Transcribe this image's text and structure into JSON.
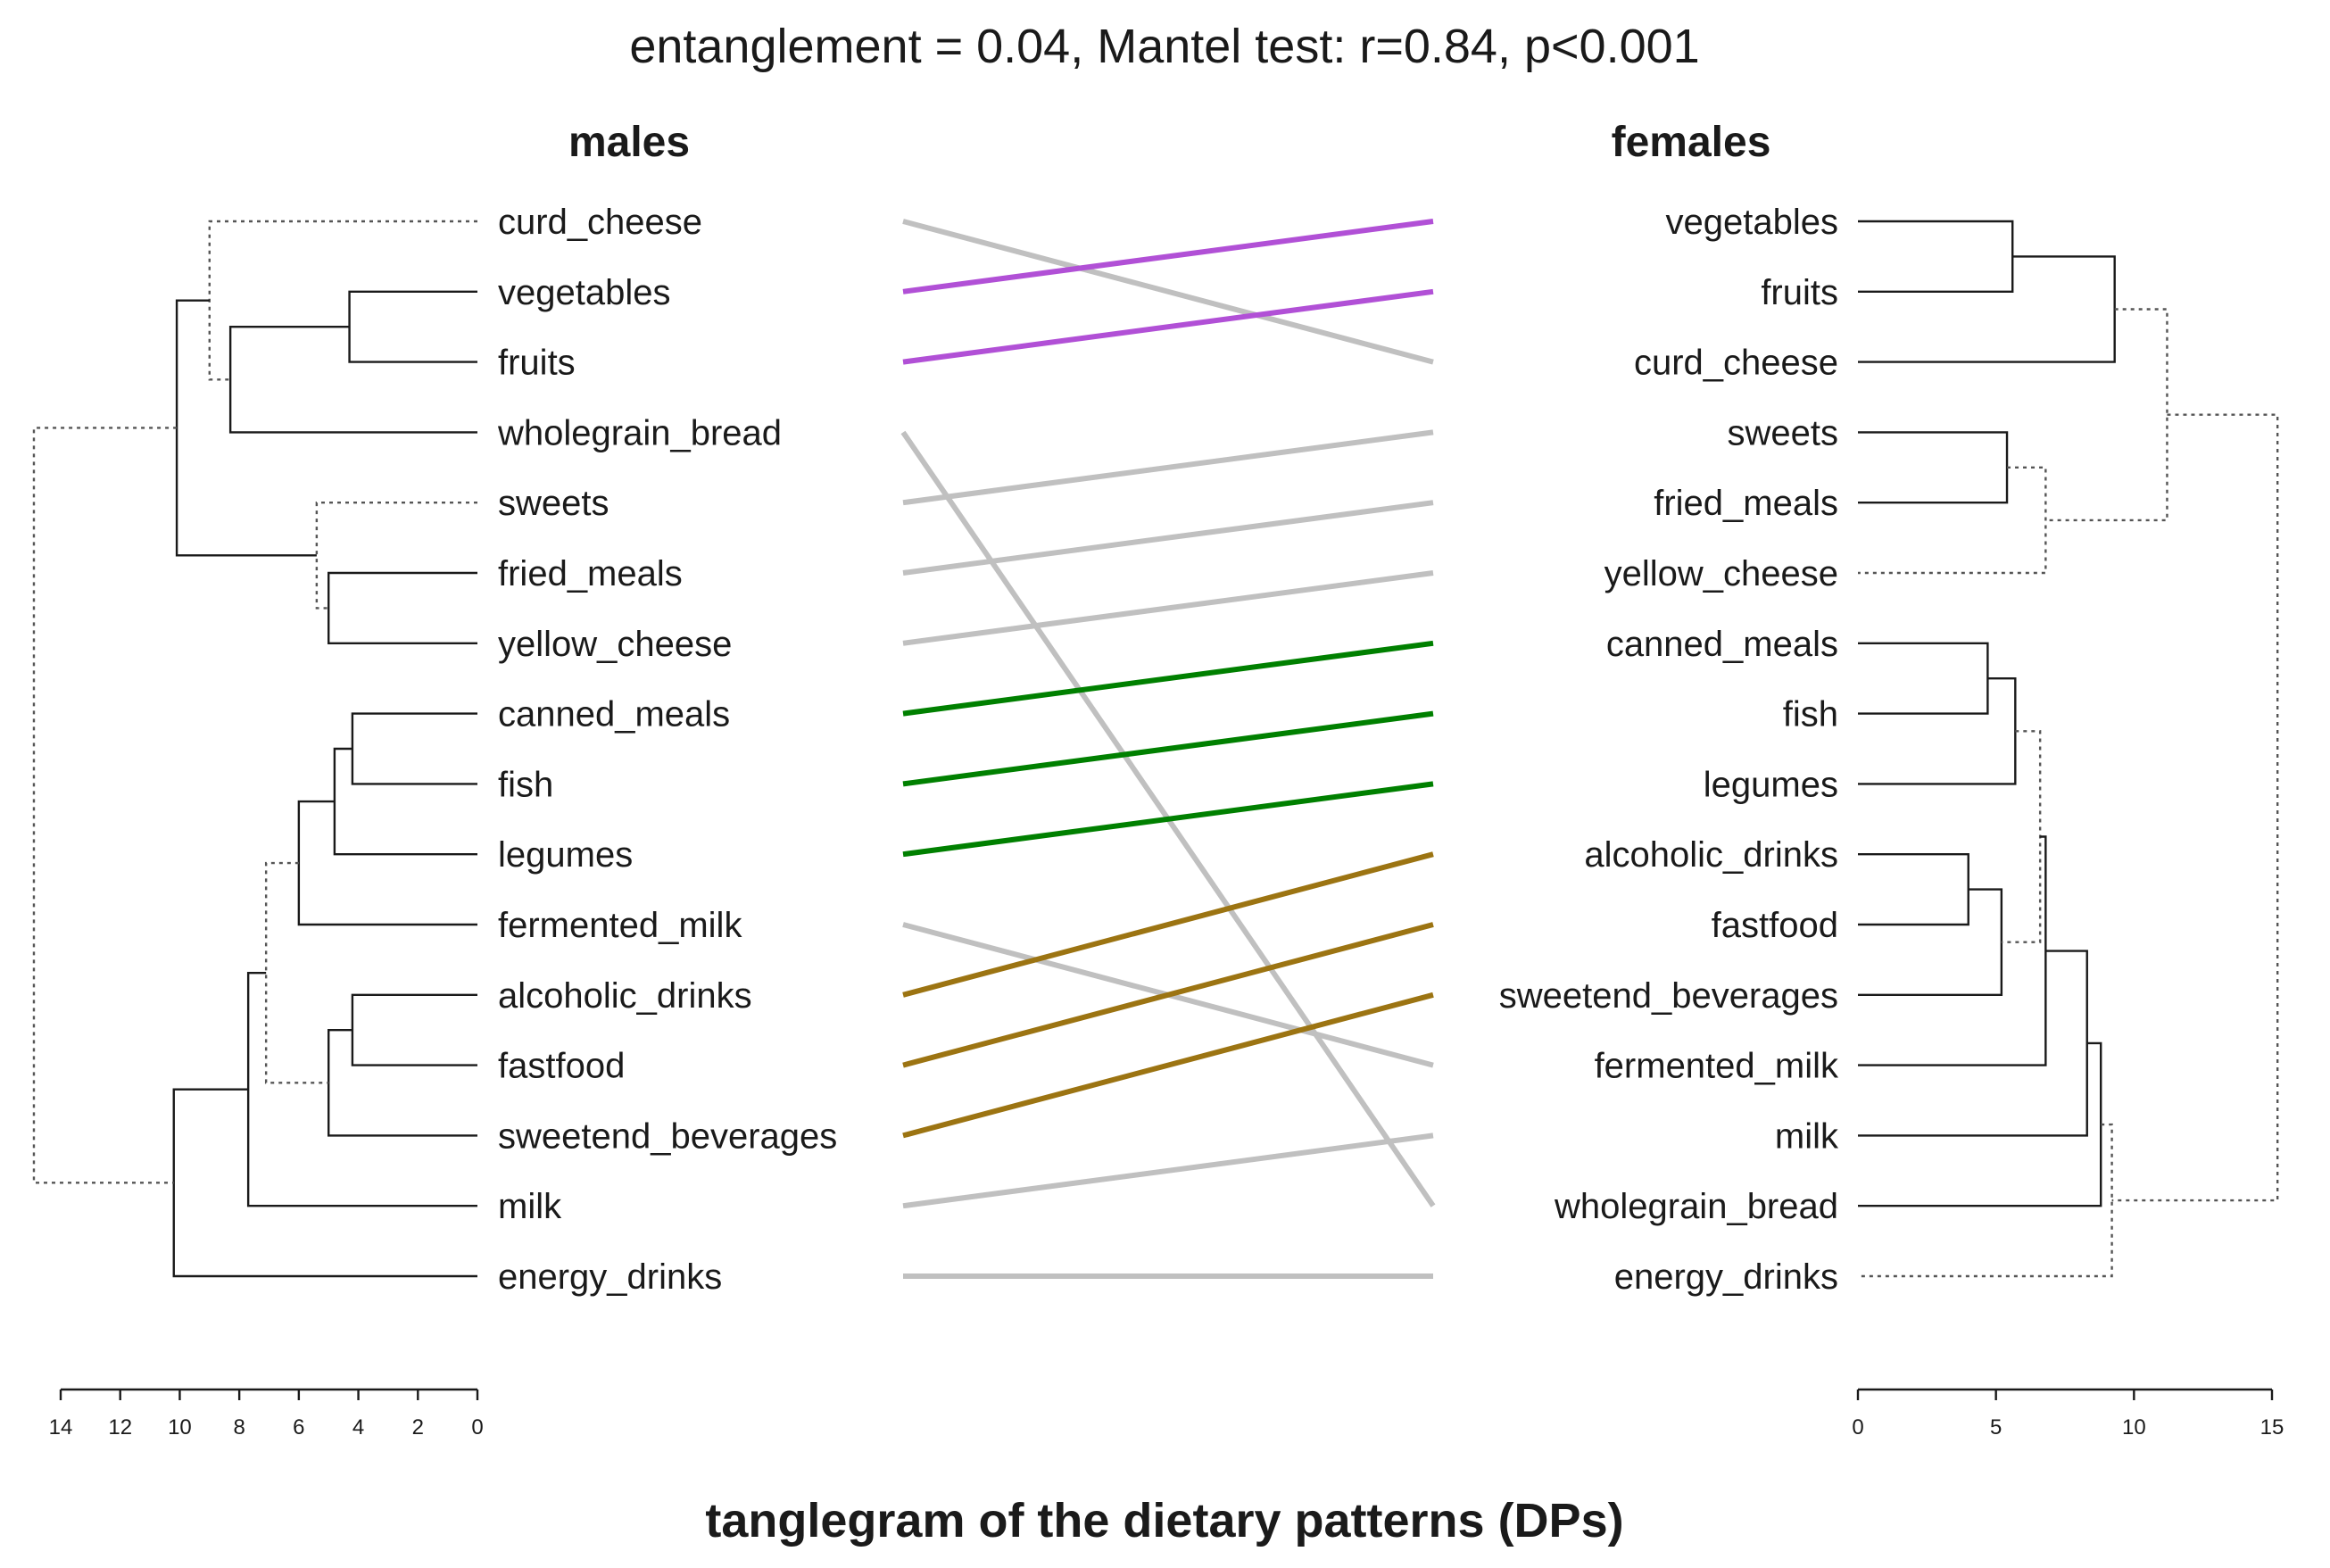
{
  "chart_data": {
    "type": "tanglegram",
    "title": "entanglement = 0.04, Mantel test: r=0.84, p<0.001",
    "xlabel": "tanglegram of the dietary patterns (DPs)",
    "colors": {
      "text": "#1a1a1a",
      "purple": "#b150d6",
      "green": "#008000",
      "gold": "#9c7412",
      "gray": "#c0c0c0",
      "dotted": "#555555"
    },
    "left": {
      "name": "males",
      "axis": {
        "min": 0,
        "max": 14,
        "ticks": [
          14,
          12,
          10,
          8,
          6,
          4,
          2,
          0
        ]
      },
      "leaves": [
        "curd_cheese",
        "vegetables",
        "fruits",
        "wholegrain_bread",
        "sweets",
        "fried_meals",
        "yellow_cheese",
        "canned_meals",
        "fish",
        "legumes",
        "fermented_milk",
        "alcoholic_drinks",
        "fastfood",
        "sweetend_beverages",
        "milk",
        "energy_drinks"
      ],
      "merges": [
        {
          "id": "m1",
          "children": [
            "L1",
            "L2"
          ],
          "height": 4.3
        },
        {
          "id": "m2",
          "children": [
            "m1",
            "L3"
          ],
          "height": 8.3
        },
        {
          "id": "m3",
          "children": [
            "L0",
            "m2"
          ],
          "height": 9.0,
          "dotted": true
        },
        {
          "id": "m4",
          "children": [
            "L5",
            "L6"
          ],
          "height": 5.0
        },
        {
          "id": "m5",
          "children": [
            "L4",
            "m4"
          ],
          "height": 5.4,
          "dotted": true
        },
        {
          "id": "m6",
          "children": [
            "m3",
            "m5"
          ],
          "height": 10.1
        },
        {
          "id": "m7",
          "children": [
            "L7",
            "L8"
          ],
          "height": 4.2
        },
        {
          "id": "m8",
          "children": [
            "m7",
            "L9"
          ],
          "height": 4.8
        },
        {
          "id": "m9",
          "children": [
            "m8",
            "L10"
          ],
          "height": 6.0
        },
        {
          "id": "m10",
          "children": [
            "L11",
            "L12"
          ],
          "height": 4.2
        },
        {
          "id": "m11",
          "children": [
            "m10",
            "L13"
          ],
          "height": 5.0
        },
        {
          "id": "m12",
          "children": [
            "m9",
            "m11"
          ],
          "height": 7.1,
          "dotted": true
        },
        {
          "id": "m13",
          "children": [
            "m12",
            "L14"
          ],
          "height": 7.7
        },
        {
          "id": "m14",
          "children": [
            "m13",
            "L15"
          ],
          "height": 10.2
        },
        {
          "id": "m15",
          "children": [
            "m6",
            "m14"
          ],
          "height": 14.9,
          "dotted": true
        }
      ]
    },
    "right": {
      "name": "females",
      "axis": {
        "min": 0,
        "max": 15,
        "ticks": [
          0,
          5,
          10,
          15
        ]
      },
      "leaves": [
        "vegetables",
        "fruits",
        "curd_cheese",
        "sweets",
        "fried_meals",
        "yellow_cheese",
        "canned_meals",
        "fish",
        "legumes",
        "alcoholic_drinks",
        "fastfood",
        "sweetend_beverages",
        "fermented_milk",
        "milk",
        "wholegrain_bread",
        "energy_drinks"
      ],
      "merges": [
        {
          "id": "f1",
          "children": [
            "L0",
            "L1"
          ],
          "height": 5.6
        },
        {
          "id": "f2",
          "children": [
            "f1",
            "L2"
          ],
          "height": 9.3
        },
        {
          "id": "f3",
          "children": [
            "L3",
            "L4"
          ],
          "height": 5.4
        },
        {
          "id": "f4",
          "children": [
            "f3",
            "L5"
          ],
          "height": 6.8,
          "dotted": true
        },
        {
          "id": "f5",
          "children": [
            "f2",
            "f4"
          ],
          "height": 11.2,
          "dotted": true
        },
        {
          "id": "f6",
          "children": [
            "L6",
            "L7"
          ],
          "height": 4.7
        },
        {
          "id": "f7",
          "children": [
            "f6",
            "L8"
          ],
          "height": 5.7
        },
        {
          "id": "f8",
          "children": [
            "L9",
            "L10"
          ],
          "height": 4.0
        },
        {
          "id": "f9",
          "children": [
            "f8",
            "L11"
          ],
          "height": 5.2
        },
        {
          "id": "f10",
          "children": [
            "f7",
            "f9"
          ],
          "height": 6.6,
          "dotted": true
        },
        {
          "id": "f11",
          "children": [
            "f10",
            "L12"
          ],
          "height": 6.8
        },
        {
          "id": "f12",
          "children": [
            "f11",
            "L13"
          ],
          "height": 8.3
        },
        {
          "id": "f13",
          "children": [
            "f12",
            "L14"
          ],
          "height": 8.8
        },
        {
          "id": "f14",
          "children": [
            "f13",
            "L15"
          ],
          "height": 9.2,
          "dotted": true
        },
        {
          "id": "f15",
          "children": [
            "f5",
            "f14"
          ],
          "height": 15.2,
          "dotted": true
        }
      ]
    },
    "connections": [
      {
        "leaf": "curd_cheese",
        "color": "gray"
      },
      {
        "leaf": "vegetables",
        "color": "purple"
      },
      {
        "leaf": "fruits",
        "color": "purple"
      },
      {
        "leaf": "wholegrain_bread",
        "color": "gray"
      },
      {
        "leaf": "sweets",
        "color": "gray"
      },
      {
        "leaf": "fried_meals",
        "color": "gray"
      },
      {
        "leaf": "yellow_cheese",
        "color": "gray"
      },
      {
        "leaf": "canned_meals",
        "color": "green"
      },
      {
        "leaf": "fish",
        "color": "green"
      },
      {
        "leaf": "legumes",
        "color": "green"
      },
      {
        "leaf": "fermented_milk",
        "color": "gray"
      },
      {
        "leaf": "alcoholic_drinks",
        "color": "gold"
      },
      {
        "leaf": "fastfood",
        "color": "gold"
      },
      {
        "leaf": "sweetend_beverages",
        "color": "gold"
      },
      {
        "leaf": "milk",
        "color": "gray"
      },
      {
        "leaf": "energy_drinks",
        "color": "gray"
      }
    ]
  }
}
